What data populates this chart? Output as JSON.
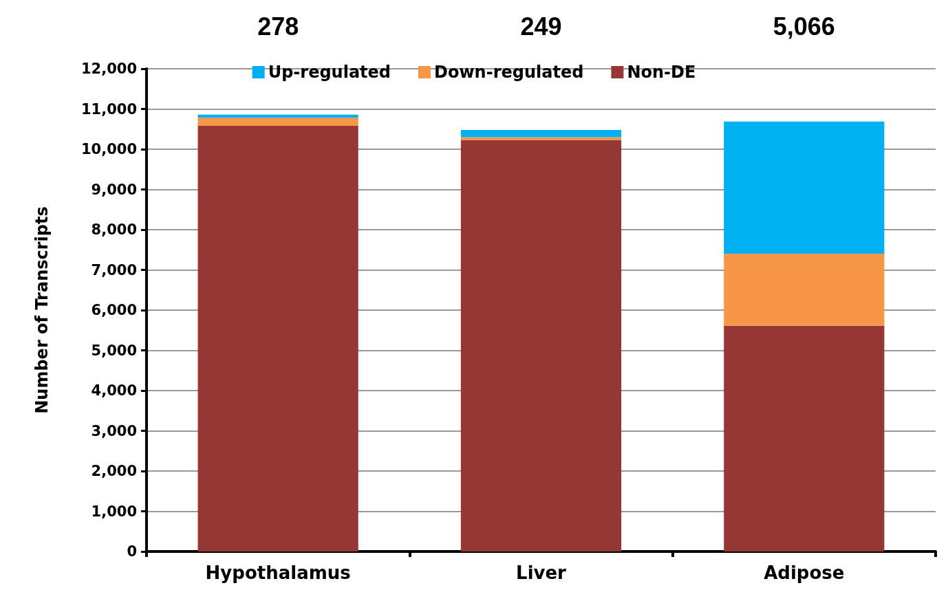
{
  "chart_data": {
    "type": "bar",
    "stacked": true,
    "categories": [
      "Hypothalamus",
      "Liver",
      "Adipose"
    ],
    "ylabel": "Number of Transcripts",
    "series": [
      {
        "name": "Non-DE",
        "color": "#953735",
        "values": [
          10580,
          10230,
          5610
        ]
      },
      {
        "name": "Down-regulated",
        "color": "#f79646",
        "values": [
          200,
          70,
          1790
        ]
      },
      {
        "name": "Up-regulated",
        "color": "#00b0f0",
        "values": [
          80,
          180,
          3290
        ]
      }
    ],
    "ylim": [
      0,
      12000
    ],
    "yticks": [
      0,
      {
        "value": 1000,
        "label": "1,000"
      },
      {
        "value": 2000,
        "label": "2,000"
      },
      {
        "value": 3000,
        "label": "3,000"
      },
      {
        "value": 4000,
        "label": "4,000"
      },
      {
        "value": 5000,
        "label": "5,000"
      },
      {
        "value": 6000,
        "label": "6,000"
      },
      {
        "value": 7000,
        "label": "7,000"
      },
      {
        "value": 8000,
        "label": "8,000"
      },
      {
        "value": 9000,
        "label": "9,000"
      },
      {
        "value": 10000,
        "label": "10,000"
      },
      {
        "value": 11000,
        "label": "11,000"
      },
      {
        "value": 12000,
        "label": "12,000"
      }
    ],
    "grid": "y",
    "legend": "top",
    "annotations": [
      "278",
      "249",
      "5,066"
    ]
  }
}
